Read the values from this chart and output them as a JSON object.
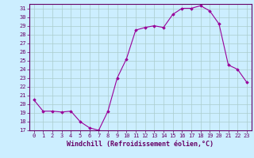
{
  "x": [
    0,
    1,
    2,
    3,
    4,
    5,
    6,
    7,
    8,
    9,
    10,
    11,
    12,
    13,
    14,
    15,
    16,
    17,
    18,
    19,
    20,
    21,
    22,
    23
  ],
  "y": [
    20.5,
    19.2,
    19.2,
    19.1,
    19.2,
    18.0,
    17.3,
    17.0,
    19.2,
    23.0,
    25.2,
    28.5,
    28.8,
    29.0,
    28.8,
    30.3,
    31.0,
    31.0,
    31.3,
    30.7,
    29.2,
    24.5,
    24.0,
    22.5
  ],
  "line_color": "#990099",
  "marker": "D",
  "markersize": 1.8,
  "linewidth": 0.8,
  "bg_color": "#cceeff",
  "grid_color": "#aacccc",
  "xlabel": "Windchill (Refroidissement éolien,°C)",
  "ylabel": "",
  "xlim": [
    -0.5,
    23.5
  ],
  "ylim": [
    17,
    31.5
  ],
  "yticks": [
    17,
    18,
    19,
    20,
    21,
    22,
    23,
    24,
    25,
    26,
    27,
    28,
    29,
    30,
    31
  ],
  "xticks": [
    0,
    1,
    2,
    3,
    4,
    5,
    6,
    7,
    8,
    9,
    10,
    11,
    12,
    13,
    14,
    15,
    16,
    17,
    18,
    19,
    20,
    21,
    22,
    23
  ],
  "tick_fontsize": 5.0,
  "xlabel_fontsize": 6.0,
  "text_color": "#660066",
  "spine_color": "#660066",
  "axis_bg": "#cceeff"
}
